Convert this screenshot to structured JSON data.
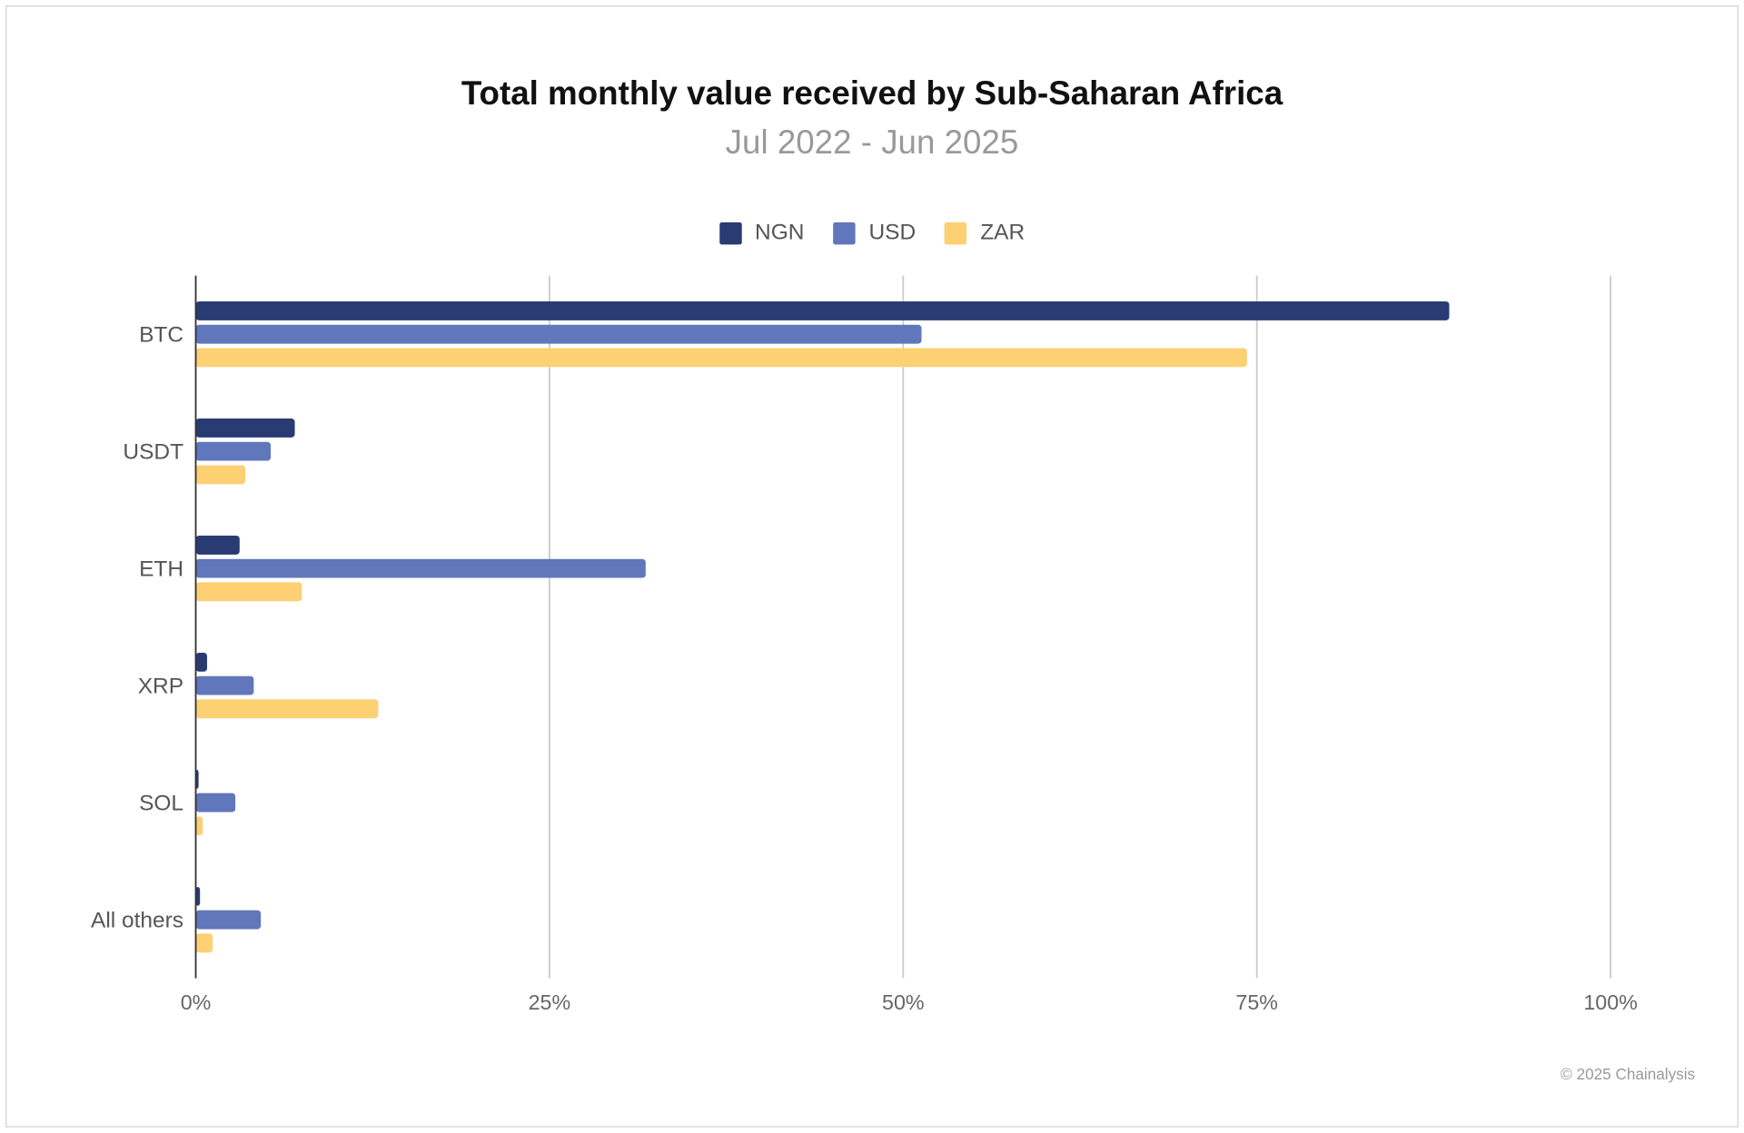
{
  "chart_data": {
    "type": "bar",
    "orientation": "horizontal",
    "title": "Total monthly value received by Sub-Saharan Africa",
    "subtitle": "Jul 2022 - Jun 2025",
    "categories": [
      "BTC",
      "USDT",
      "ETH",
      "XRP",
      "SOL",
      "All others"
    ],
    "series": [
      {
        "name": "NGN",
        "color": "#2a3a73",
        "values": [
          88.6,
          7.0,
          3.1,
          0.8,
          0.2,
          0.3
        ]
      },
      {
        "name": "USD",
        "color": "#6177bb",
        "values": [
          51.3,
          5.3,
          31.8,
          4.1,
          2.8,
          4.6
        ]
      },
      {
        "name": "ZAR",
        "color": "#fcd073",
        "values": [
          74.3,
          3.5,
          7.5,
          12.9,
          0.5,
          1.2
        ]
      }
    ],
    "xlim": [
      0,
      100
    ],
    "x_ticks": [
      "0%",
      "25%",
      "50%",
      "75%",
      "100%"
    ],
    "x_tick_values": [
      0,
      25,
      50,
      75,
      100
    ],
    "grid": true,
    "legend_position": "top-center"
  },
  "credit": "© 2025 Chainalysis"
}
